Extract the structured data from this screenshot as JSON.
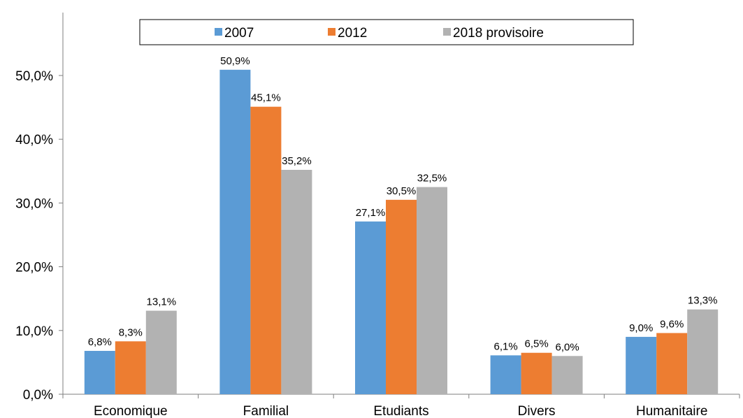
{
  "chart_data": {
    "type": "bar",
    "categories": [
      "Economique",
      "Familial",
      "Etudiants",
      "Divers",
      "Humanitaire"
    ],
    "series": [
      {
        "name": "2007",
        "color": "#5b9bd5",
        "values": [
          6.8,
          50.9,
          27.1,
          6.1,
          9.0
        ],
        "labels": [
          "6,8%",
          "50,9%",
          "27,1%",
          "6,1%",
          "9,0%"
        ]
      },
      {
        "name": "2012",
        "color": "#ed7d31",
        "values": [
          8.3,
          45.1,
          30.5,
          6.5,
          9.6
        ],
        "labels": [
          "8,3%",
          "45,1%",
          "30,5%",
          "6,5%",
          "9,6%"
        ]
      },
      {
        "name": "2018 provisoire",
        "color": "#b2b2b2",
        "values": [
          13.1,
          35.2,
          32.5,
          6.0,
          13.3
        ],
        "labels": [
          "13,1%",
          "35,2%",
          "32,5%",
          "6,0%",
          "13,3%"
        ]
      }
    ],
    "ylim": [
      0,
      55
    ],
    "yticks": [
      0,
      10,
      20,
      30,
      40,
      50
    ],
    "ytick_labels": [
      "0,0%",
      "10,0%",
      "20,0%",
      "30,0%",
      "40,0%",
      "50,0%"
    ],
    "grid": false,
    "legend_position": "top-center"
  }
}
